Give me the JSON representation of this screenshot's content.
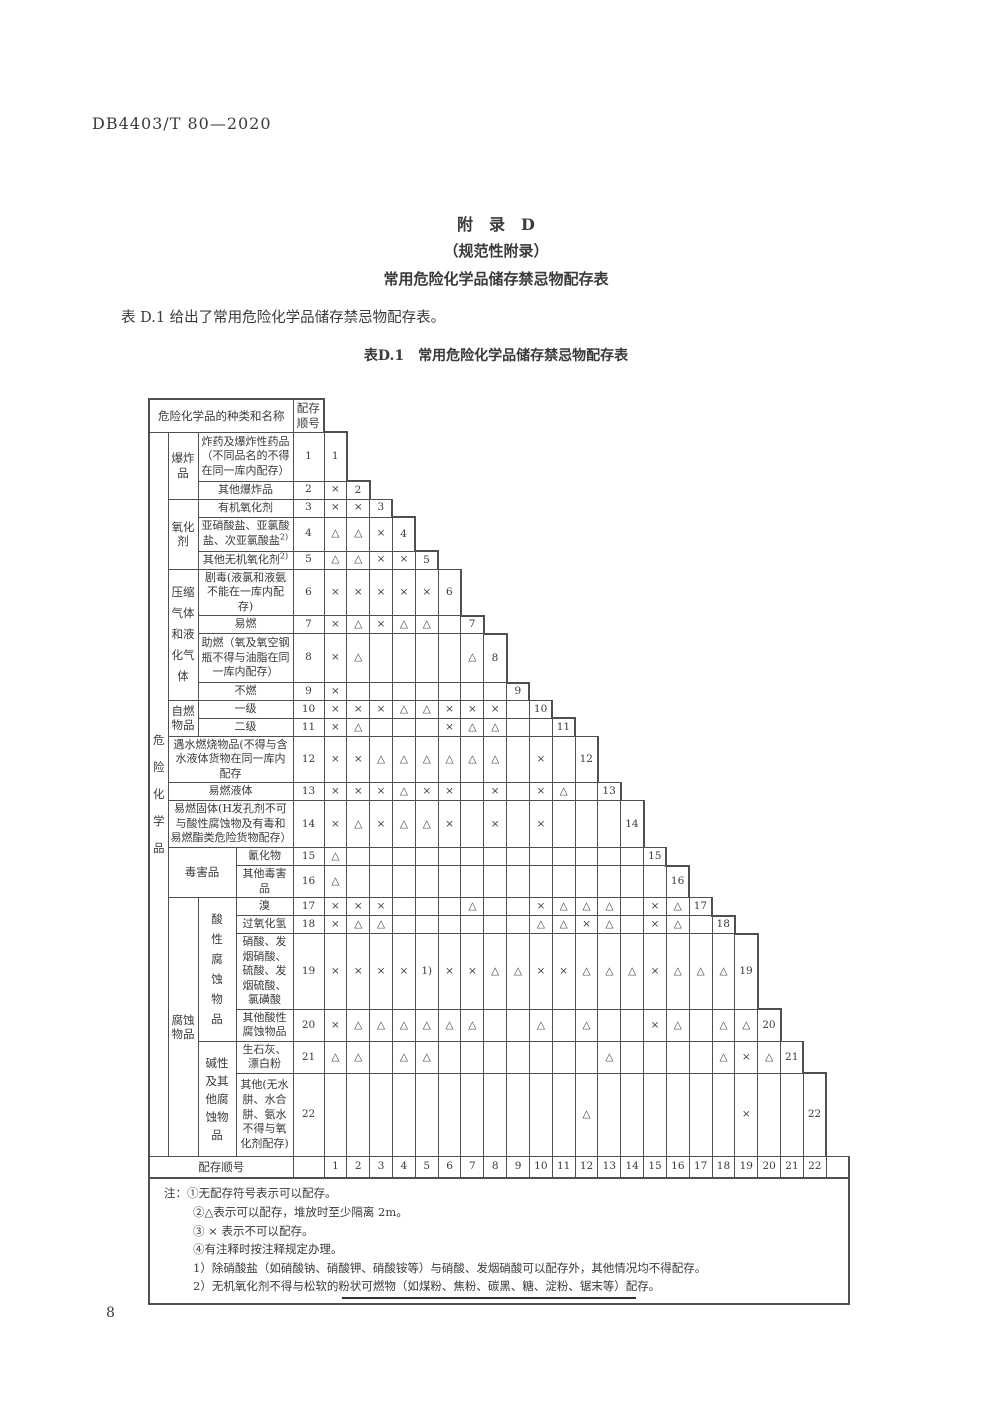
{
  "colors": {
    "ink": "#3a3a3a",
    "border": "#4f4f4f"
  },
  "page": {
    "doc_number": "DB4403/T 80—2020",
    "appendix_title": "附　录　D",
    "appendix_subtitle": "（规范性附录）",
    "appendix_name": "常用危险化学品储存禁忌物配存表",
    "intro": "表 D.1 给出了常用危险化学品储存禁忌物配存表。",
    "table_caption": "表D.1　常用危险化学品储存禁忌物配存表",
    "page_number": "8"
  },
  "table": {
    "header": {
      "names_label": "危险化学品的种类和名称",
      "seq_label": "配存顺号"
    },
    "side_labels": [
      {
        "text": "危险化学品",
        "row": 1,
        "rowspan": 22,
        "col": "a",
        "cpl": 1
      },
      {
        "text": "爆炸品",
        "row": 1,
        "rowspan": 2,
        "col": "b"
      },
      {
        "text": "氧化剂",
        "row": 3,
        "rowspan": 3,
        "col": "b"
      },
      {
        "text": "压缩气体和液化气体",
        "row": 6,
        "rowspan": 4,
        "col": "b",
        "cpl": 2
      },
      {
        "text": "自燃物品",
        "row": 10,
        "rowspan": 2,
        "col": "b"
      },
      {
        "text": "毒害品",
        "row": 15,
        "rowspan": 2,
        "col": "bc"
      },
      {
        "text": "腐蚀物品",
        "row": 17,
        "rowspan": 6,
        "col": "b"
      },
      {
        "text": "酸性腐蚀物品",
        "row": 17,
        "rowspan": 4,
        "col": "c",
        "cpl": 1
      },
      {
        "text": "碱性及其他腐蚀物品",
        "row": 21,
        "rowspan": 2,
        "col": "c",
        "cpl": 2
      }
    ],
    "rows": [
      {
        "n": 1,
        "name": "炸药及爆炸性药品（不同品名的不得在同一库内配存）",
        "cells": []
      },
      {
        "n": 2,
        "name": "其他爆炸品",
        "cells": [
          "×"
        ]
      },
      {
        "n": 3,
        "name": "有机氧化剂",
        "cells": [
          "×",
          "×"
        ]
      },
      {
        "n": 4,
        "name": "亚硝酸盐、亚氯酸盐、次亚氯酸盐",
        "sup": "2)",
        "cells": [
          "△",
          "△",
          "×"
        ]
      },
      {
        "n": 5,
        "name": "其他无机氧化剂",
        "sup": "2)",
        "cells": [
          "△",
          "△",
          "×",
          "×"
        ]
      },
      {
        "n": 6,
        "name": "剧毒(液氯和液氨不能在一库内配存)",
        "cells": [
          "×",
          "×",
          "×",
          "×",
          "×"
        ]
      },
      {
        "n": 7,
        "name": "易燃",
        "cells": [
          "×",
          "△",
          "×",
          "△",
          "△",
          ""
        ]
      },
      {
        "n": 8,
        "name": "助燃（氧及氧空钢瓶不得与油脂在同一库内配存）",
        "cells": [
          "×",
          "△",
          "",
          "",
          "",
          "",
          "△"
        ]
      },
      {
        "n": 9,
        "name": "不燃",
        "cells": [
          "×",
          "",
          "",
          "",
          "",
          "",
          "",
          ""
        ]
      },
      {
        "n": 10,
        "name": "一级",
        "cells": [
          "×",
          "×",
          "×",
          "△",
          "△",
          "×",
          "×",
          "×",
          ""
        ]
      },
      {
        "n": 11,
        "name": "二级",
        "cells": [
          "×",
          "△",
          "",
          "",
          "",
          "×",
          "△",
          "△",
          "",
          ""
        ]
      },
      {
        "n": 12,
        "name": "遇水燃烧物品(不得与含水液体货物在同一库内配存",
        "cells": [
          "×",
          "×",
          "△",
          "△",
          "△",
          "△",
          "△",
          "△",
          "",
          "×",
          ""
        ]
      },
      {
        "n": 13,
        "name": "易燃液体",
        "cells": [
          "×",
          "×",
          "×",
          "△",
          "×",
          "×",
          "",
          "×",
          "",
          "×",
          "△",
          ""
        ]
      },
      {
        "n": 14,
        "name": "易燃固体(H发孔剂不可与酸性腐蚀物及有毒和易燃酯类危险货物配存）",
        "cells": [
          "×",
          "△",
          "×",
          "△",
          "△",
          "×",
          "",
          "×",
          "",
          "×",
          "",
          "",
          ""
        ]
      },
      {
        "n": 15,
        "name": "氰化物",
        "cells": [
          "△",
          "",
          "",
          "",
          "",
          "",
          "",
          "",
          "",
          "",
          "",
          "",
          "",
          ""
        ]
      },
      {
        "n": 16,
        "name": "其他毒害品",
        "cells": [
          "△",
          "",
          "",
          "",
          "",
          "",
          "",
          "",
          "",
          "",
          "",
          "",
          "",
          "",
          ""
        ]
      },
      {
        "n": 17,
        "name": "溴",
        "cells": [
          "×",
          "×",
          "×",
          "",
          "",
          "",
          "△",
          "",
          "",
          "×",
          "△",
          "△",
          "△",
          "",
          "×",
          "△"
        ]
      },
      {
        "n": 18,
        "name": "过氧化氢",
        "cells": [
          "×",
          "△",
          "△",
          "",
          "",
          "",
          "",
          "",
          "",
          "△",
          "△",
          "×",
          "△",
          "",
          "×",
          "△",
          ""
        ]
      },
      {
        "n": 19,
        "name": "硝酸、发烟硝酸、硫酸、发烟硫酸、氯磺酸",
        "cells": [
          "×",
          "×",
          "×",
          "×",
          "1)",
          "×",
          "×",
          "△",
          "△",
          "×",
          "×",
          "△",
          "△",
          "△",
          "×",
          "△",
          "△",
          "△"
        ]
      },
      {
        "n": 20,
        "name": "其他酸性腐蚀物品",
        "cells": [
          "×",
          "△",
          "△",
          "△",
          "△",
          "△",
          "△",
          "",
          "",
          "△",
          "",
          "△",
          "",
          "",
          "×",
          "△",
          "",
          "△",
          "△"
        ]
      },
      {
        "n": 21,
        "name": "生石灰、漂白粉",
        "cells": [
          "△",
          "△",
          "",
          "△",
          "△",
          "",
          "",
          "",
          "",
          "",
          "",
          "",
          "△",
          "",
          "",
          "",
          "",
          "△",
          "×",
          "△"
        ]
      },
      {
        "n": 22,
        "name": "其他(无水肼、水合肼、氨水不得与氧化剂配存)",
        "cells": [
          "",
          "",
          "",
          "",
          "",
          "",
          "",
          "",
          "",
          "",
          "",
          "△",
          "",
          "",
          "",
          "",
          "",
          "",
          "×",
          "",
          ""
        ]
      }
    ],
    "footer_label": "配存顺号",
    "footer_numbers": [
      1,
      2,
      3,
      4,
      5,
      6,
      7,
      8,
      9,
      10,
      11,
      12,
      13,
      14,
      15,
      16,
      17,
      18,
      19,
      20,
      21,
      22
    ]
  },
  "notes": {
    "prefix": "注：",
    "items": [
      "①无配存符号表示可以配存。",
      "②△表示可以配存，堆放时至少隔离 2m。",
      "③ × 表示不可以配存。",
      "④有注释时按注释规定办理。",
      "1）除硝酸盐（如硝酸钠、硝酸钾、硝酸铵等）与硝酸、发烟硝酸可以配存外，其他情况均不得配存。",
      "2）无机氧化剂不得与松软的粉状可燃物（如煤粉、焦粉、碳黑、糖、淀粉、锯末等）配存。"
    ]
  }
}
